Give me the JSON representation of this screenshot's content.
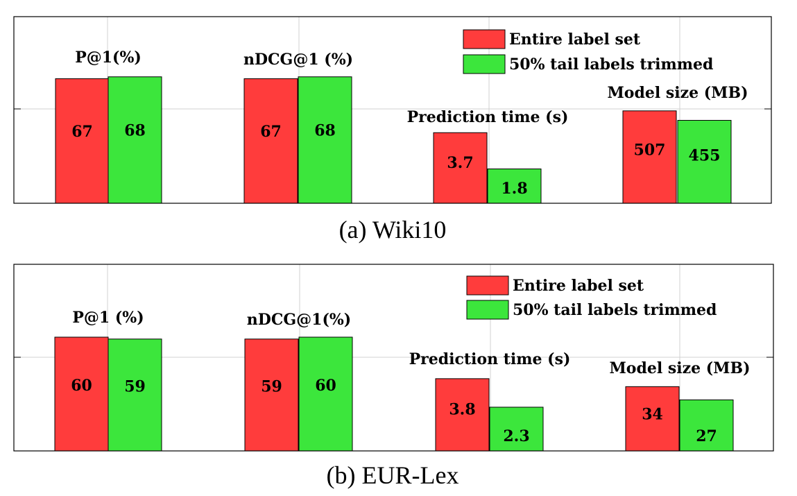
{
  "colors": {
    "entire": "#ff3c3c",
    "trimmed": "#3ce63c",
    "grid": "#d0d0d0",
    "frame": "#000000"
  },
  "chart_data": [
    {
      "type": "bar",
      "caption": "(a) Wiki10",
      "legend": {
        "placement": "top-right",
        "entries": [
          "Entire label set",
          "50% tail labels trimmed"
        ]
      },
      "grid": true,
      "groups": [
        {
          "label": "P@1(%)",
          "values": [
            67,
            68
          ],
          "value_labels": [
            "67",
            "68"
          ]
        },
        {
          "label": "nDCG@1 (%)",
          "values": [
            67,
            68
          ],
          "value_labels": [
            "67",
            "68"
          ]
        },
        {
          "label": "Prediction time (s)",
          "values": [
            3.7,
            1.8
          ],
          "value_labels": [
            "3.7",
            "1.8"
          ]
        },
        {
          "label": "Model size (MB)",
          "values": [
            507,
            455
          ],
          "value_labels": [
            "507",
            "455"
          ]
        }
      ]
    },
    {
      "type": "bar",
      "caption": "(b) EUR-Lex",
      "legend": {
        "placement": "top-right",
        "entries": [
          "Entire label set",
          "50% tail labels trimmed"
        ]
      },
      "grid": true,
      "groups": [
        {
          "label": "P@1 (%)",
          "values": [
            60,
            59
          ],
          "value_labels": [
            "60",
            "59"
          ]
        },
        {
          "label": "nDCG@1(%)",
          "values": [
            59,
            60
          ],
          "value_labels": [
            "59",
            "60"
          ]
        },
        {
          "label": "Prediction time (s)",
          "values": [
            3.8,
            2.3
          ],
          "value_labels": [
            "3.8",
            "2.3"
          ]
        },
        {
          "label": "Model size (MB)",
          "values": [
            34,
            27
          ],
          "value_labels": [
            "34",
            "27"
          ]
        }
      ]
    }
  ]
}
